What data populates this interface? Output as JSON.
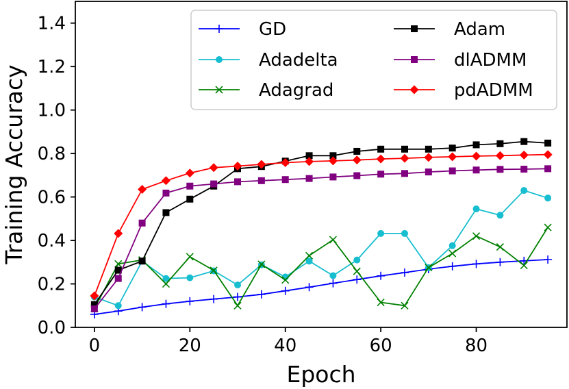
{
  "chart_data": {
    "type": "line",
    "title": "",
    "xlabel": "Epoch",
    "ylabel": "Training Accuracy",
    "xlim": [
      -4,
      99
    ],
    "ylim": [
      0.0,
      1.5
    ],
    "x_ticks": [
      "0",
      "20",
      "40",
      "60",
      "80"
    ],
    "y_ticks": [
      "0.0",
      "0.2",
      "0.4",
      "0.6",
      "0.8",
      "1.0",
      "1.2",
      "1.4"
    ],
    "x": [
      0,
      5,
      10,
      15,
      20,
      25,
      30,
      35,
      40,
      45,
      50,
      55,
      60,
      65,
      70,
      75,
      80,
      85,
      90,
      95
    ],
    "legend_position": "top-right",
    "series": [
      {
        "name": "GD",
        "color": "#0000ff",
        "marker": "plus",
        "values": [
          0.06,
          0.075,
          0.093,
          0.108,
          0.12,
          0.13,
          0.14,
          0.152,
          0.168,
          0.185,
          0.203,
          0.22,
          0.237,
          0.252,
          0.268,
          0.281,
          0.292,
          0.3,
          0.306,
          0.312
        ]
      },
      {
        "name": "Adadelta",
        "color": "#17becf",
        "marker": "circle",
        "values": [
          0.14,
          0.1,
          0.305,
          0.225,
          0.228,
          0.26,
          0.195,
          0.288,
          0.232,
          0.305,
          0.238,
          0.31,
          0.432,
          0.432,
          0.275,
          0.376,
          0.545,
          0.516,
          0.63,
          0.595
        ]
      },
      {
        "name": "Adagrad",
        "color": "#008000",
        "marker": "x",
        "values": [
          0.088,
          0.292,
          0.31,
          0.2,
          0.325,
          0.262,
          0.1,
          0.29,
          0.218,
          0.33,
          0.403,
          0.258,
          0.115,
          0.1,
          0.275,
          0.34,
          0.42,
          0.37,
          0.285,
          0.46
        ]
      },
      {
        "name": "Adam",
        "color": "#000000",
        "marker": "square",
        "values": [
          0.105,
          0.263,
          0.305,
          0.528,
          0.59,
          0.65,
          0.73,
          0.74,
          0.765,
          0.79,
          0.79,
          0.81,
          0.82,
          0.82,
          0.82,
          0.825,
          0.84,
          0.845,
          0.855,
          0.848
        ]
      },
      {
        "name": "dlADMM",
        "color": "#800080",
        "marker": "square",
        "values": [
          0.085,
          0.225,
          0.48,
          0.618,
          0.65,
          0.66,
          0.67,
          0.675,
          0.68,
          0.685,
          0.692,
          0.698,
          0.705,
          0.708,
          0.715,
          0.72,
          0.724,
          0.727,
          0.728,
          0.73
        ]
      },
      {
        "name": "pdADMM",
        "color": "#ff0000",
        "marker": "diamond",
        "values": [
          0.145,
          0.432,
          0.635,
          0.675,
          0.71,
          0.735,
          0.742,
          0.75,
          0.758,
          0.763,
          0.766,
          0.77,
          0.775,
          0.778,
          0.782,
          0.785,
          0.788,
          0.79,
          0.793,
          0.795
        ]
      }
    ]
  }
}
